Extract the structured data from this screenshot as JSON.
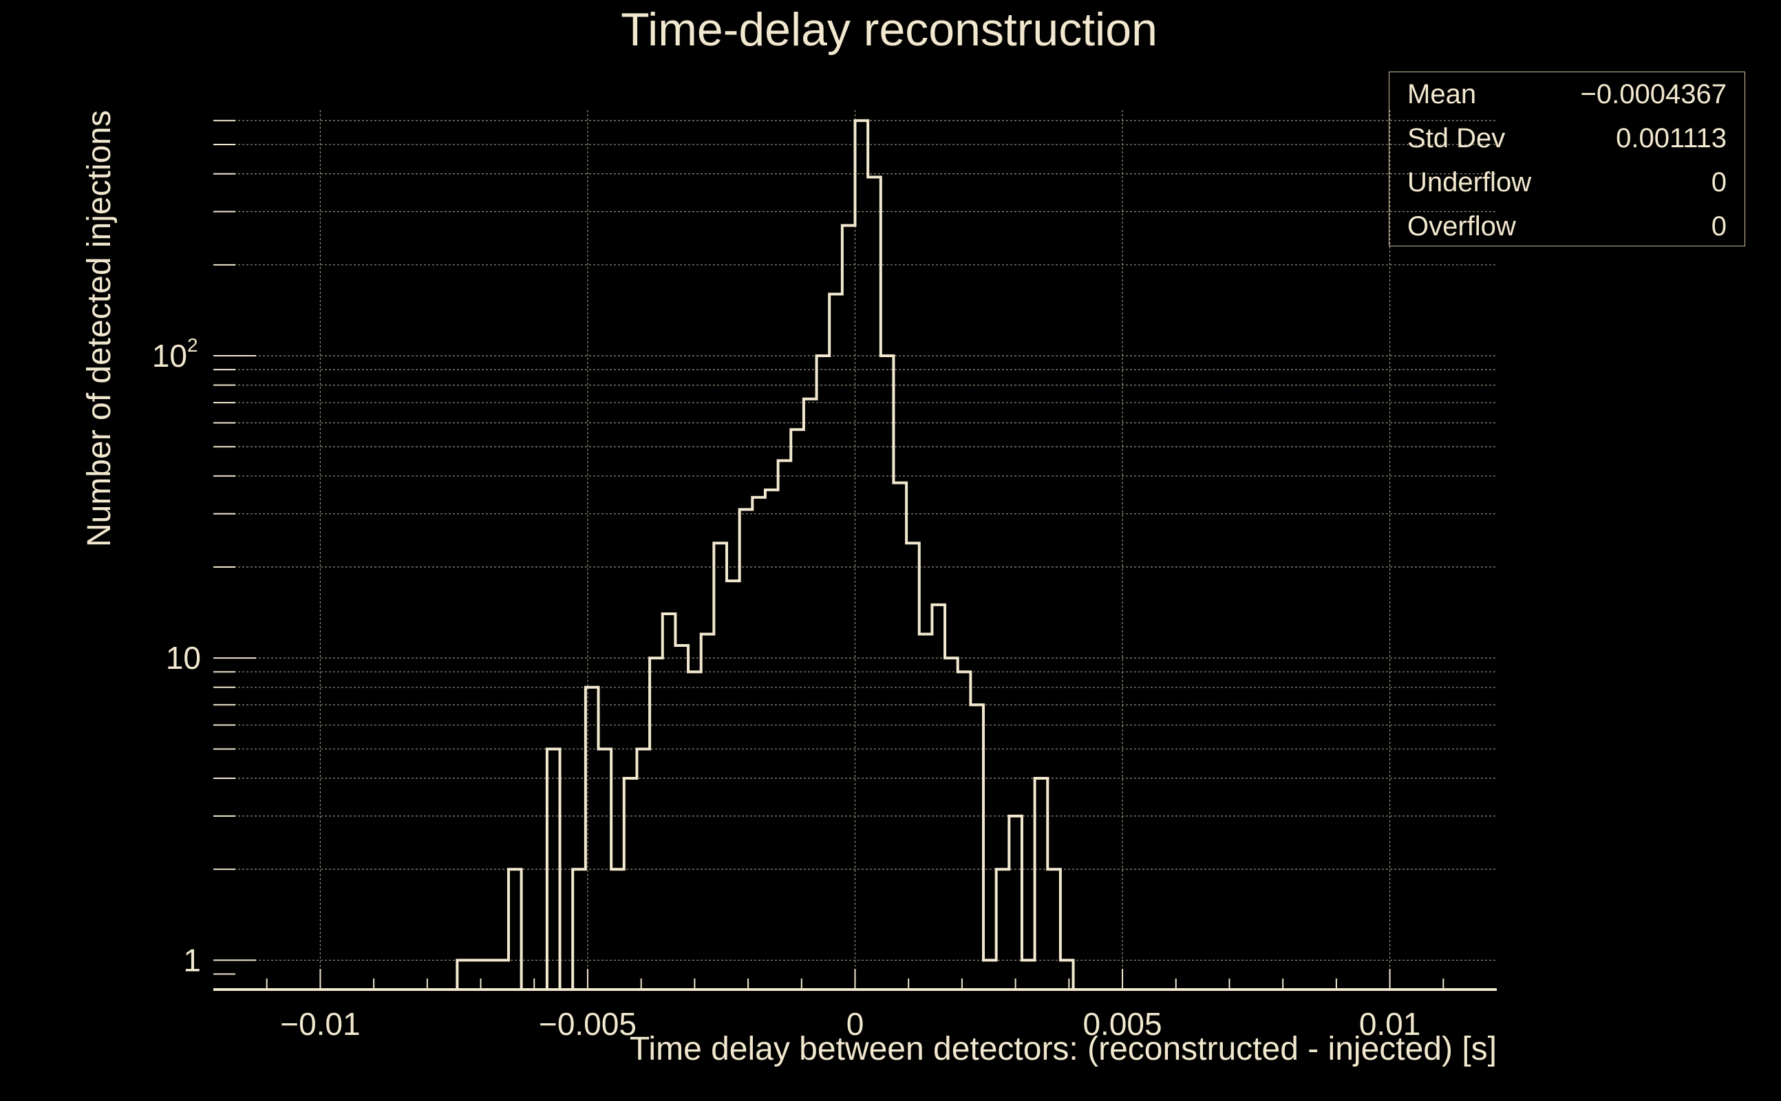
{
  "colors": {
    "background": "#000000",
    "foreground": "#f2e8cf",
    "grid": "#9a917e",
    "stats_border": "#cdbfa0"
  },
  "stats": [
    {
      "label": "Mean",
      "value": "−0.0004367"
    },
    {
      "label": "Std Dev",
      "value": "0.001113"
    },
    {
      "label": "Underflow",
      "value": "0"
    },
    {
      "label": "Overflow",
      "value": "0"
    }
  ],
  "chart_data": {
    "type": "histogram",
    "title": "Time-delay reconstruction",
    "xlabel": "Time delay between detectors: (reconstructed - injected) [s]",
    "ylabel": "Number of detected injections",
    "xlim": [
      -0.012,
      0.012
    ],
    "ylim": [
      0.8,
      650
    ],
    "yscale": "log",
    "grid": true,
    "x_ticks": [
      {
        "value": -0.01,
        "label": "−0.01"
      },
      {
        "value": -0.005,
        "label": "−0.005"
      },
      {
        "value": 0,
        "label": "0"
      },
      {
        "value": 0.005,
        "label": "0.005"
      },
      {
        "value": 0.01,
        "label": "0.01"
      }
    ],
    "y_ticks": [
      {
        "value": 1,
        "base": "1",
        "exp": ""
      },
      {
        "value": 10,
        "base": "10",
        "exp": ""
      },
      {
        "value": 100,
        "base": "10",
        "exp": "2"
      }
    ],
    "bin_edges_start": -0.012,
    "bin_width": 0.00024,
    "counts": [
      0,
      0,
      0,
      0,
      0,
      0,
      0,
      0,
      0,
      0,
      0,
      0,
      0,
      0,
      0,
      0,
      0,
      0,
      0,
      1,
      1,
      1,
      1,
      2,
      0,
      0,
      5,
      0,
      2,
      8,
      5,
      2,
      4,
      5,
      10,
      14,
      11,
      9,
      12,
      24,
      18,
      31,
      34,
      36,
      45,
      57,
      72,
      100,
      160,
      270,
      600,
      390,
      100,
      38,
      24,
      12,
      15,
      10,
      9,
      7,
      1,
      2,
      3,
      1,
      4,
      2,
      1,
      0,
      0,
      0,
      0,
      0,
      0,
      0,
      0,
      0,
      0,
      0,
      0,
      0,
      0,
      0,
      0,
      0,
      0,
      0,
      0,
      0,
      0,
      0,
      0,
      0,
      0,
      0,
      0,
      0,
      0,
      0,
      0,
      0
    ]
  }
}
